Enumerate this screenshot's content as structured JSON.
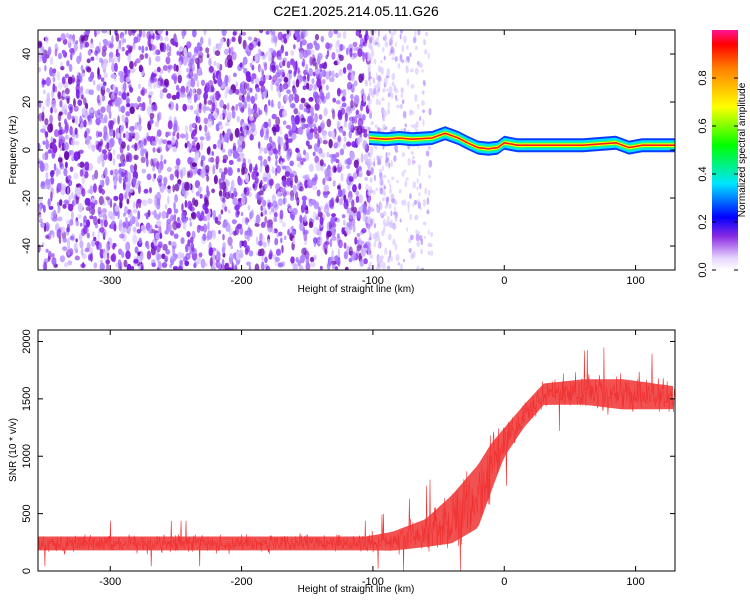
{
  "title": "C2E1.2025.214.05.11.G26",
  "chart_data": [
    {
      "type": "heatmap",
      "xlabel": "Height of straight line (km)",
      "ylabel": "Frequency (Hz)",
      "xlim": [
        -355,
        130
      ],
      "ylim": [
        -50,
        50
      ],
      "xticks": [
        -300,
        -200,
        -100,
        0,
        100
      ],
      "yticks": [
        -40,
        -20,
        0,
        20,
        40
      ],
      "noise_region": {
        "x_from": -355,
        "x_to": -103,
        "scattered_until": -55
      },
      "ridge": [
        {
          "x": -103,
          "y": 5
        },
        {
          "x": -90,
          "y": 4.5
        },
        {
          "x": -80,
          "y": 5
        },
        {
          "x": -70,
          "y": 4.5
        },
        {
          "x": -55,
          "y": 5
        },
        {
          "x": -45,
          "y": 7
        },
        {
          "x": -35,
          "y": 5
        },
        {
          "x": -28,
          "y": 3
        },
        {
          "x": -20,
          "y": 1
        },
        {
          "x": -12,
          "y": 0.5
        },
        {
          "x": -5,
          "y": 1
        },
        {
          "x": 0,
          "y": 3
        },
        {
          "x": 10,
          "y": 2
        },
        {
          "x": 30,
          "y": 2
        },
        {
          "x": 60,
          "y": 2
        },
        {
          "x": 85,
          "y": 3
        },
        {
          "x": 95,
          "y": 1
        },
        {
          "x": 105,
          "y": 2
        },
        {
          "x": 130,
          "y": 2
        }
      ],
      "colorbar": {
        "label": "Normalized spectral amplitude",
        "range": [
          0,
          1
        ],
        "ticks": [
          "0.0",
          "0.2",
          "0.4",
          "0.6",
          "0.8"
        ]
      }
    },
    {
      "type": "line",
      "xlabel": "Height of straight line (km)",
      "ylabel": "SNR (10 * v/v)",
      "xlim": [
        -355,
        130
      ],
      "ylim": [
        0,
        2100
      ],
      "xticks": [
        -300,
        -200,
        -100,
        0,
        100
      ],
      "yticks": [
        0,
        500,
        1000,
        1500,
        2000
      ],
      "color": "#f03232",
      "profile": [
        {
          "x": -355,
          "mean": 240,
          "spread": 110
        },
        {
          "x": -105,
          "mean": 240,
          "spread": 110
        },
        {
          "x": -85,
          "mean": 260,
          "spread": 150
        },
        {
          "x": -60,
          "mean": 330,
          "spread": 220
        },
        {
          "x": -40,
          "mean": 450,
          "spread": 380
        },
        {
          "x": -20,
          "mean": 650,
          "spread": 500
        },
        {
          "x": -10,
          "mean": 900,
          "spread": 380
        },
        {
          "x": 0,
          "mean": 1120,
          "spread": 230
        },
        {
          "x": 15,
          "mean": 1350,
          "spread": 180
        },
        {
          "x": 30,
          "mean": 1540,
          "spread": 170
        },
        {
          "x": 60,
          "mean": 1560,
          "spread": 200
        },
        {
          "x": 90,
          "mean": 1540,
          "spread": 240
        },
        {
          "x": 130,
          "mean": 1510,
          "spread": 180
        }
      ]
    }
  ]
}
